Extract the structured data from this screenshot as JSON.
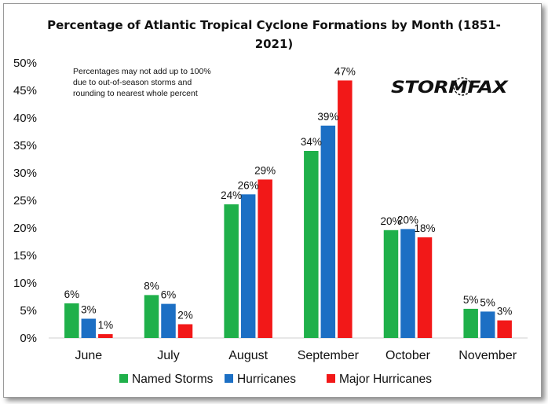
{
  "chart_data": {
    "type": "bar",
    "title": "Percentage of Atlantic Tropical Cyclone Formations by Month (1851-2021)",
    "title_lines": [
      "Percentage of Atlantic Tropical Cyclone Formations by Month (1851-",
      "2021)"
    ],
    "note_lines": [
      "Percentages may not add up to 100%",
      "due to out-of-season storms and",
      "rounding to nearest whole percent"
    ],
    "logo": "STORMFAX",
    "categories": [
      "June",
      "July",
      "August",
      "September",
      "October",
      "November"
    ],
    "series": [
      {
        "name": "Named Storms",
        "color": "#1fb04a",
        "values": [
          6.3,
          7.8,
          24.3,
          34.0,
          19.6,
          5.3
        ],
        "labels": [
          "6%",
          "8%",
          "24%",
          "34%",
          "20%",
          "5%"
        ]
      },
      {
        "name": "Hurricanes",
        "color": "#1c6fc4",
        "values": [
          3.5,
          6.2,
          26.1,
          38.6,
          19.8,
          4.8
        ],
        "labels": [
          "3%",
          "6%",
          "26%",
          "39%",
          "20%",
          "5%"
        ]
      },
      {
        "name": "Major Hurricanes",
        "color": "#f21818",
        "values": [
          0.7,
          2.5,
          28.8,
          46.8,
          18.3,
          3.2
        ],
        "labels": [
          "1%",
          "2%",
          "29%",
          "47%",
          "18%",
          "3%"
        ]
      }
    ],
    "yticks": [
      "0%",
      "5%",
      "10%",
      "15%",
      "20%",
      "25%",
      "30%",
      "35%",
      "40%",
      "45%",
      "50%"
    ],
    "ylim": [
      0,
      50
    ],
    "xlabel": "",
    "ylabel": "",
    "grid": false,
    "legend_position": "bottom"
  }
}
